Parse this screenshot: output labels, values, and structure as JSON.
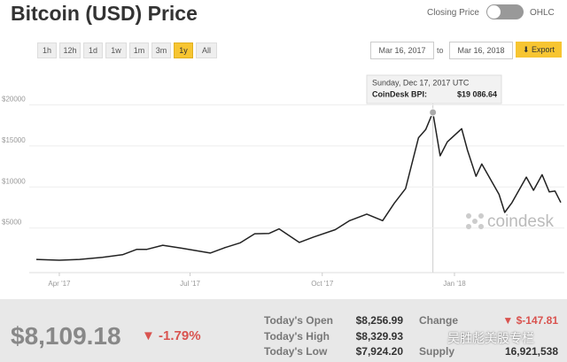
{
  "header": {
    "title": "Bitcoin (USD) Price",
    "toggle_left": "Closing Price",
    "toggle_right": "OHLC",
    "ranges": [
      "1h",
      "12h",
      "1d",
      "1w",
      "1m",
      "3m",
      "1y",
      "All"
    ],
    "date_from": "Mar 16, 2017",
    "date_sep": "to",
    "date_to": "Mar 16, 2018",
    "export": "Export"
  },
  "chart_data": {
    "type": "line",
    "x": [
      "2017-03-16",
      "2017-04-01",
      "2017-04-15",
      "2017-05-01",
      "2017-05-15",
      "2017-05-25",
      "2017-06-01",
      "2017-06-12",
      "2017-06-25",
      "2017-07-15",
      "2017-07-25",
      "2017-08-05",
      "2017-08-15",
      "2017-08-25",
      "2017-09-01",
      "2017-09-15",
      "2017-09-25",
      "2017-10-10",
      "2017-10-20",
      "2017-11-01",
      "2017-11-12",
      "2017-11-20",
      "2017-11-28",
      "2017-12-07",
      "2017-12-12",
      "2017-12-17",
      "2017-12-22",
      "2017-12-27",
      "2018-01-06",
      "2018-01-10",
      "2018-01-16",
      "2018-01-20",
      "2018-02-01",
      "2018-02-05",
      "2018-02-10",
      "2018-02-20",
      "2018-02-25",
      "2018-03-03",
      "2018-03-08",
      "2018-03-12",
      "2018-03-16"
    ],
    "series": [
      {
        "name": "CoinDesk BPI",
        "color": "#222222",
        "values": [
          1180,
          1080,
          1180,
          1420,
          1750,
          2400,
          2400,
          2900,
          2550,
          1950,
          2600,
          3200,
          4300,
          4350,
          4900,
          3250,
          3900,
          4800,
          5900,
          6700,
          5900,
          8000,
          9800,
          16000,
          17000,
          19086.64,
          13800,
          15500,
          17100,
          14500,
          11300,
          12800,
          9100,
          6900,
          8100,
          11200,
          9600,
          11500,
          9400,
          9500,
          8109.18
        ]
      }
    ],
    "xlim": [
      "2017-03-16",
      "2018-03-16"
    ],
    "xticks": [
      {
        "value": "2017-04-01",
        "label": "Apr '17"
      },
      {
        "value": "2017-07-01",
        "label": "Jul '17"
      },
      {
        "value": "2017-10-01",
        "label": "Oct '17"
      },
      {
        "value": "2018-01-01",
        "label": "Jan '18"
      }
    ],
    "ylim": [
      0,
      22000
    ],
    "yticks": [
      {
        "value": 5000,
        "label": "$5000"
      },
      {
        "value": 10000,
        "label": "$10000"
      },
      {
        "value": 15000,
        "label": "$15000"
      },
      {
        "value": 20000,
        "label": "$20000"
      }
    ],
    "grid": true,
    "tooltip": {
      "date": "Sunday, Dec 17, 2017 UTC",
      "label": "CoinDesk BPI:",
      "value": "$19 086.64"
    },
    "watermark": "coindesk"
  },
  "summary": {
    "price": "$8,109.18",
    "change_pct": "▼ -1.79%",
    "open_label": "Today's Open",
    "open": "$8,256.99",
    "high_label": "Today's High",
    "high": "$8,329.93",
    "low_label": "Today's Low",
    "low": "$7,924.20",
    "change_label": "Change",
    "change": "▼ $-147.81",
    "supply_label": "Supply",
    "supply": "16,921,538"
  },
  "overlay": "吴胜彪美股专栏"
}
